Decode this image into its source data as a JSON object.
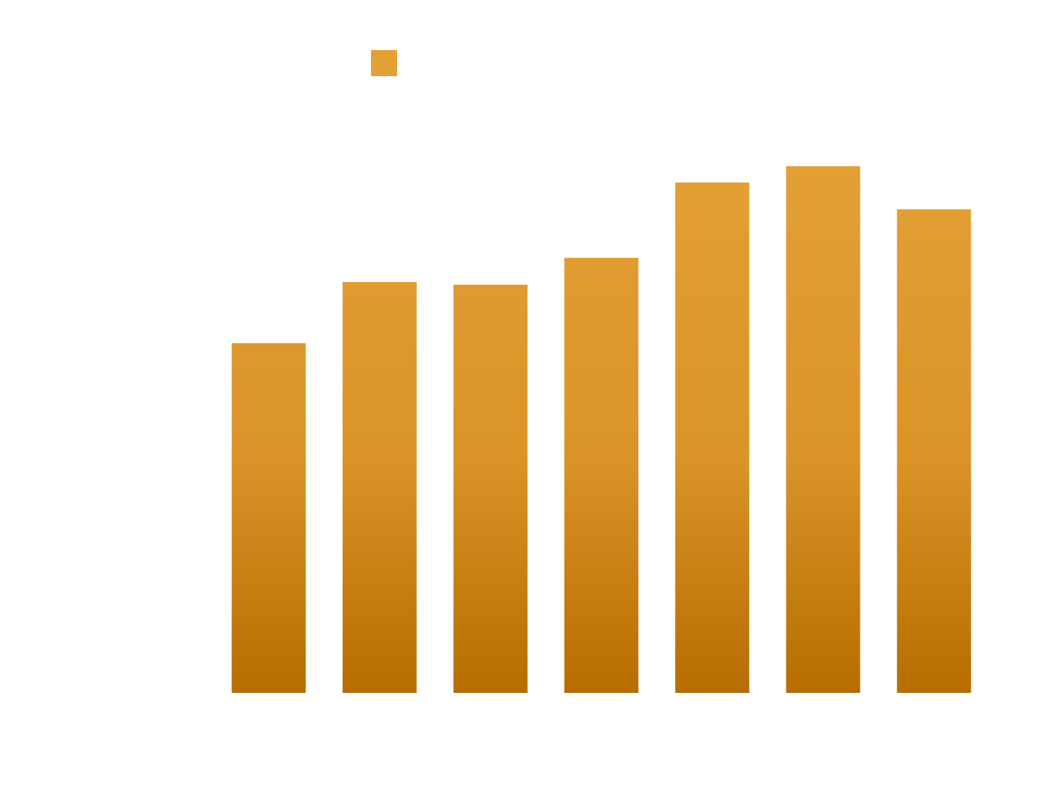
{
  "chart_data": {
    "type": "bar",
    "title": "",
    "xlabel": "",
    "ylabel": "",
    "values": [
      66.4,
      78.0,
      77.5,
      82.6,
      96.9,
      100,
      91.8
    ],
    "ylim": [
      0,
      110
    ],
    "grid": false,
    "legend": {
      "placement": "top-center",
      "entries": [
        ""
      ]
    },
    "colors": {
      "bar_top": "#e3a035",
      "bar_mid": "#da9428",
      "bar_bottom": "#b76d00"
    }
  }
}
